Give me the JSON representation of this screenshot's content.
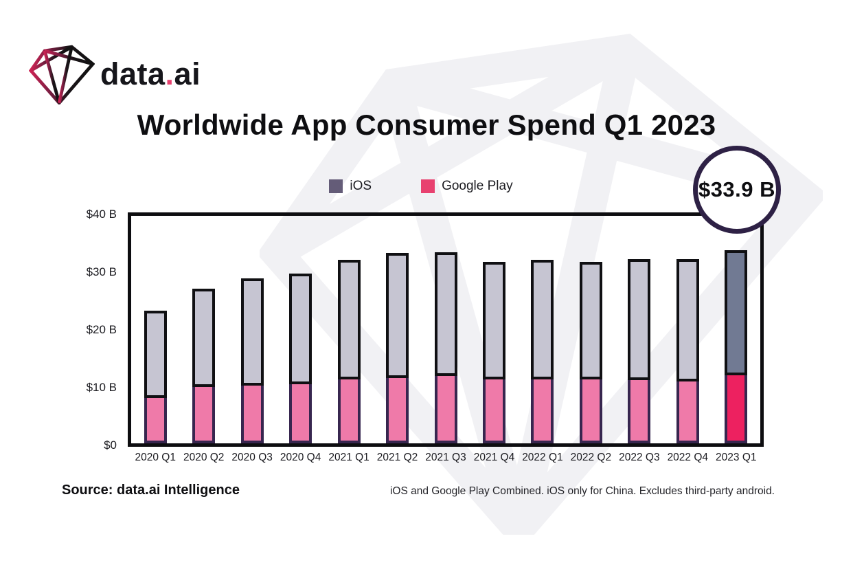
{
  "header": {
    "brand_prefix": "data",
    "brand_dot": ".",
    "brand_suffix": "ai",
    "title": "Worldwide App Consumer Spend Q1 2023"
  },
  "legend": [
    {
      "label": "iOS",
      "color": "#645c78"
    },
    {
      "label": "Google Play",
      "color": "#e8416f"
    }
  ],
  "callout": {
    "value": "$33.9 B"
  },
  "footer": {
    "source": "Source: data.ai Intelligence",
    "note": "iOS and Google Play Combined. iOS only for China. Excludes third-party android."
  },
  "chart_data": {
    "type": "bar",
    "stacked": true,
    "title": "Worldwide App Consumer Spend Q1 2023",
    "categories": [
      "2020 Q1",
      "2020 Q2",
      "2020 Q3",
      "2020 Q4",
      "2021 Q1",
      "2021 Q2",
      "2021 Q3",
      "2021 Q4",
      "2022 Q1",
      "2022 Q2",
      "2022 Q3",
      "2022 Q4",
      "2023 Q1"
    ],
    "series": [
      {
        "name": "Google Play",
        "values": [
          8.0,
          9.9,
          10.2,
          10.4,
          11.2,
          11.5,
          11.9,
          11.3,
          11.2,
          11.3,
          11.1,
          10.9,
          12.0
        ]
      },
      {
        "name": "iOS",
        "values": [
          15.3,
          17.3,
          18.8,
          19.4,
          21.1,
          22.0,
          21.7,
          20.6,
          21.1,
          20.6,
          21.3,
          21.5,
          21.9
        ]
      }
    ],
    "totals": [
      23.3,
      27.2,
      29.0,
      29.8,
      32.3,
      33.5,
      33.6,
      31.9,
      32.3,
      31.9,
      32.4,
      32.4,
      33.9
    ],
    "highlight_index": 12,
    "highlight_label": "$33.9 B",
    "xlabel": "",
    "ylabel": "",
    "ylim": [
      0,
      40
    ],
    "yticks": [
      "$40 B",
      "$30 B",
      "$20 B",
      "$10 B",
      "$0"
    ],
    "grid": false,
    "legend_position": "top-center",
    "colors": {
      "ios_normal": "#c6c5d2",
      "google_play_normal": "#ef7aa9",
      "ios_highlight": "#717a93",
      "google_play_highlight": "#ed2160",
      "ios_border": "#101013",
      "google_play_border": "#37264f",
      "plot_border": "#0d0d10",
      "callout_border": "#2e2145",
      "watermark": "#f1f1f4"
    }
  }
}
